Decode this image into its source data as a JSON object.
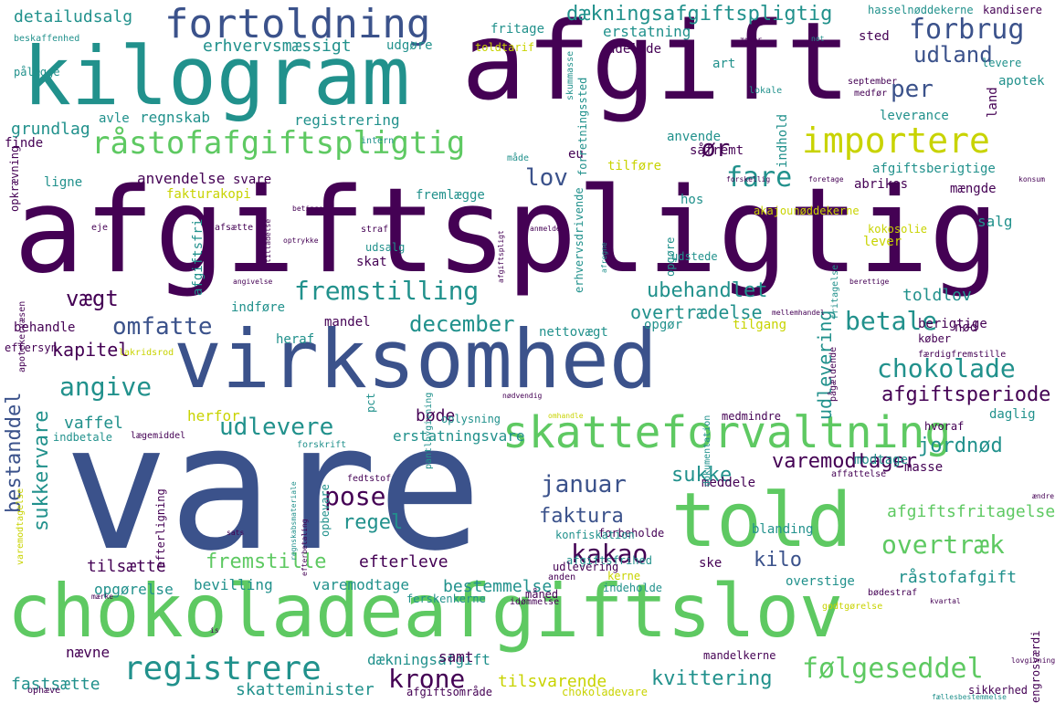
{
  "palette": {
    "purple": "#440154",
    "indigo": "#3b528b",
    "teal": "#21918c",
    "green": "#5ec962",
    "yellow": "#c8d300",
    "lightgreen": "#9fda3a"
  },
  "words": [
    "vare",
    "afgiftspligtig",
    "afgift",
    "kilogram",
    "virksomhed",
    "chokoladeafgiftslov",
    "told",
    "skatteforvaltning",
    "fortoldning",
    "råstofafgiftspligtig",
    "importere",
    "fremstilling",
    "forbrug",
    "udland",
    "dækningsafgiftspligtig",
    "registrere",
    "krone",
    "følgeseddel",
    "betale",
    "chokolade",
    "december",
    "pose",
    "kakao",
    "overtræk",
    "udlevere",
    "angive",
    "omfatte",
    "vægt",
    "bestanddel",
    "sukkervare",
    "fare",
    "lov",
    "per",
    "ør",
    "januar",
    "sukke",
    "faktura",
    "regel",
    "fremstille",
    "kilo",
    "kvittering",
    "afgiftsperiode",
    "ubehandlet",
    "jordnød",
    "varemodtager",
    "detailudsalg",
    "erhvervsmæssigt",
    "kapitel",
    "udlevering",
    "overtrædelse",
    "toldlov",
    "afgiftsfritagelse",
    "råstofafgift",
    "bestemmelse",
    "tilsvarende",
    "skatteminister",
    "dækningsafgift",
    "efterleve",
    "varemodtage",
    "opgørelse",
    "bevilling",
    "tilsætte",
    "fastsætte",
    "nævne",
    "samt",
    "vaffel",
    "bøde",
    "erstatningsvare",
    "herfor",
    "grundlag",
    "regnskab",
    "registrering",
    "avle",
    "finde",
    "ligne",
    "anvendelse",
    "svare",
    "fakturakopi",
    "fremlægge",
    "tilføre",
    "afgiftsberigtige",
    "abrikos",
    "mængde",
    "hos",
    "leverance",
    "erstatning",
    "udelade",
    "art",
    "levere",
    "land",
    "apotek",
    "mandel",
    "heraf",
    "opgør",
    "tilgang",
    "berigtige",
    "køber",
    "nettovægt",
    "indføre",
    "behandle",
    "eftersyn",
    "udsalg",
    "skat",
    "salg",
    "lever",
    "nød",
    "masse",
    "hvoraf",
    "daglig",
    "modtage",
    "meddele",
    "afgiftsfrihed",
    "blanding",
    "forbeholde",
    "ske",
    "overstige",
    "indeholde",
    "kerne",
    "opbevare",
    "pålægge",
    "beskaffenhed",
    "fritage",
    "udgøre",
    "toldtarif",
    "sted",
    "kandisere",
    "hasselnøddekerne",
    "eu",
    "anvende",
    "såfremt",
    "indhold",
    "intern",
    "måde",
    "lokale",
    "september",
    "medfør",
    "afgiftsfri",
    "forretningssted",
    "erhvervsdrivende",
    "udstede",
    "opgøre",
    "pct",
    "pantlovgivning",
    "oplysning",
    "udlevering",
    "konfiskation",
    "bødestraf",
    "godtgørelse",
    "engrosværdi",
    "fællesbestemmelse",
    "sikkerhed",
    "chokoladevare",
    "afgiftsområde",
    "mandelkerne",
    "ophæve",
    "ferskenkerne",
    "måned",
    "idømmelse",
    "efterligning",
    "varemodtagelse",
    "apotekervæsen",
    "opkrævning",
    "eje",
    "afsætte",
    "optrykke",
    "straf",
    "anmelde",
    "afregne",
    "fritagelse",
    "kokosolie",
    "akajounøddekerne",
    "foretage",
    "konsum",
    "forskellig",
    "betinge",
    "angivelse",
    "lakridsrod",
    "mellemhandel",
    "færdigfremstille",
    "pågældende",
    "dokumentation",
    "medmindre",
    "forskrift",
    "omhandle",
    "indbetale",
    "lægemiddel",
    "fedtstof",
    "regnskabsmateriale",
    "afgiftspligt",
    "skummasse",
    "not",
    "sats",
    "affattelse",
    "is",
    "nødvendig",
    "berettige",
    "tilladelse",
    "ærter",
    "kvartal",
    "ændre",
    "anden",
    "efterbetaling",
    "mærke",
    "lovgivning",
    "udskrift"
  ]
}
